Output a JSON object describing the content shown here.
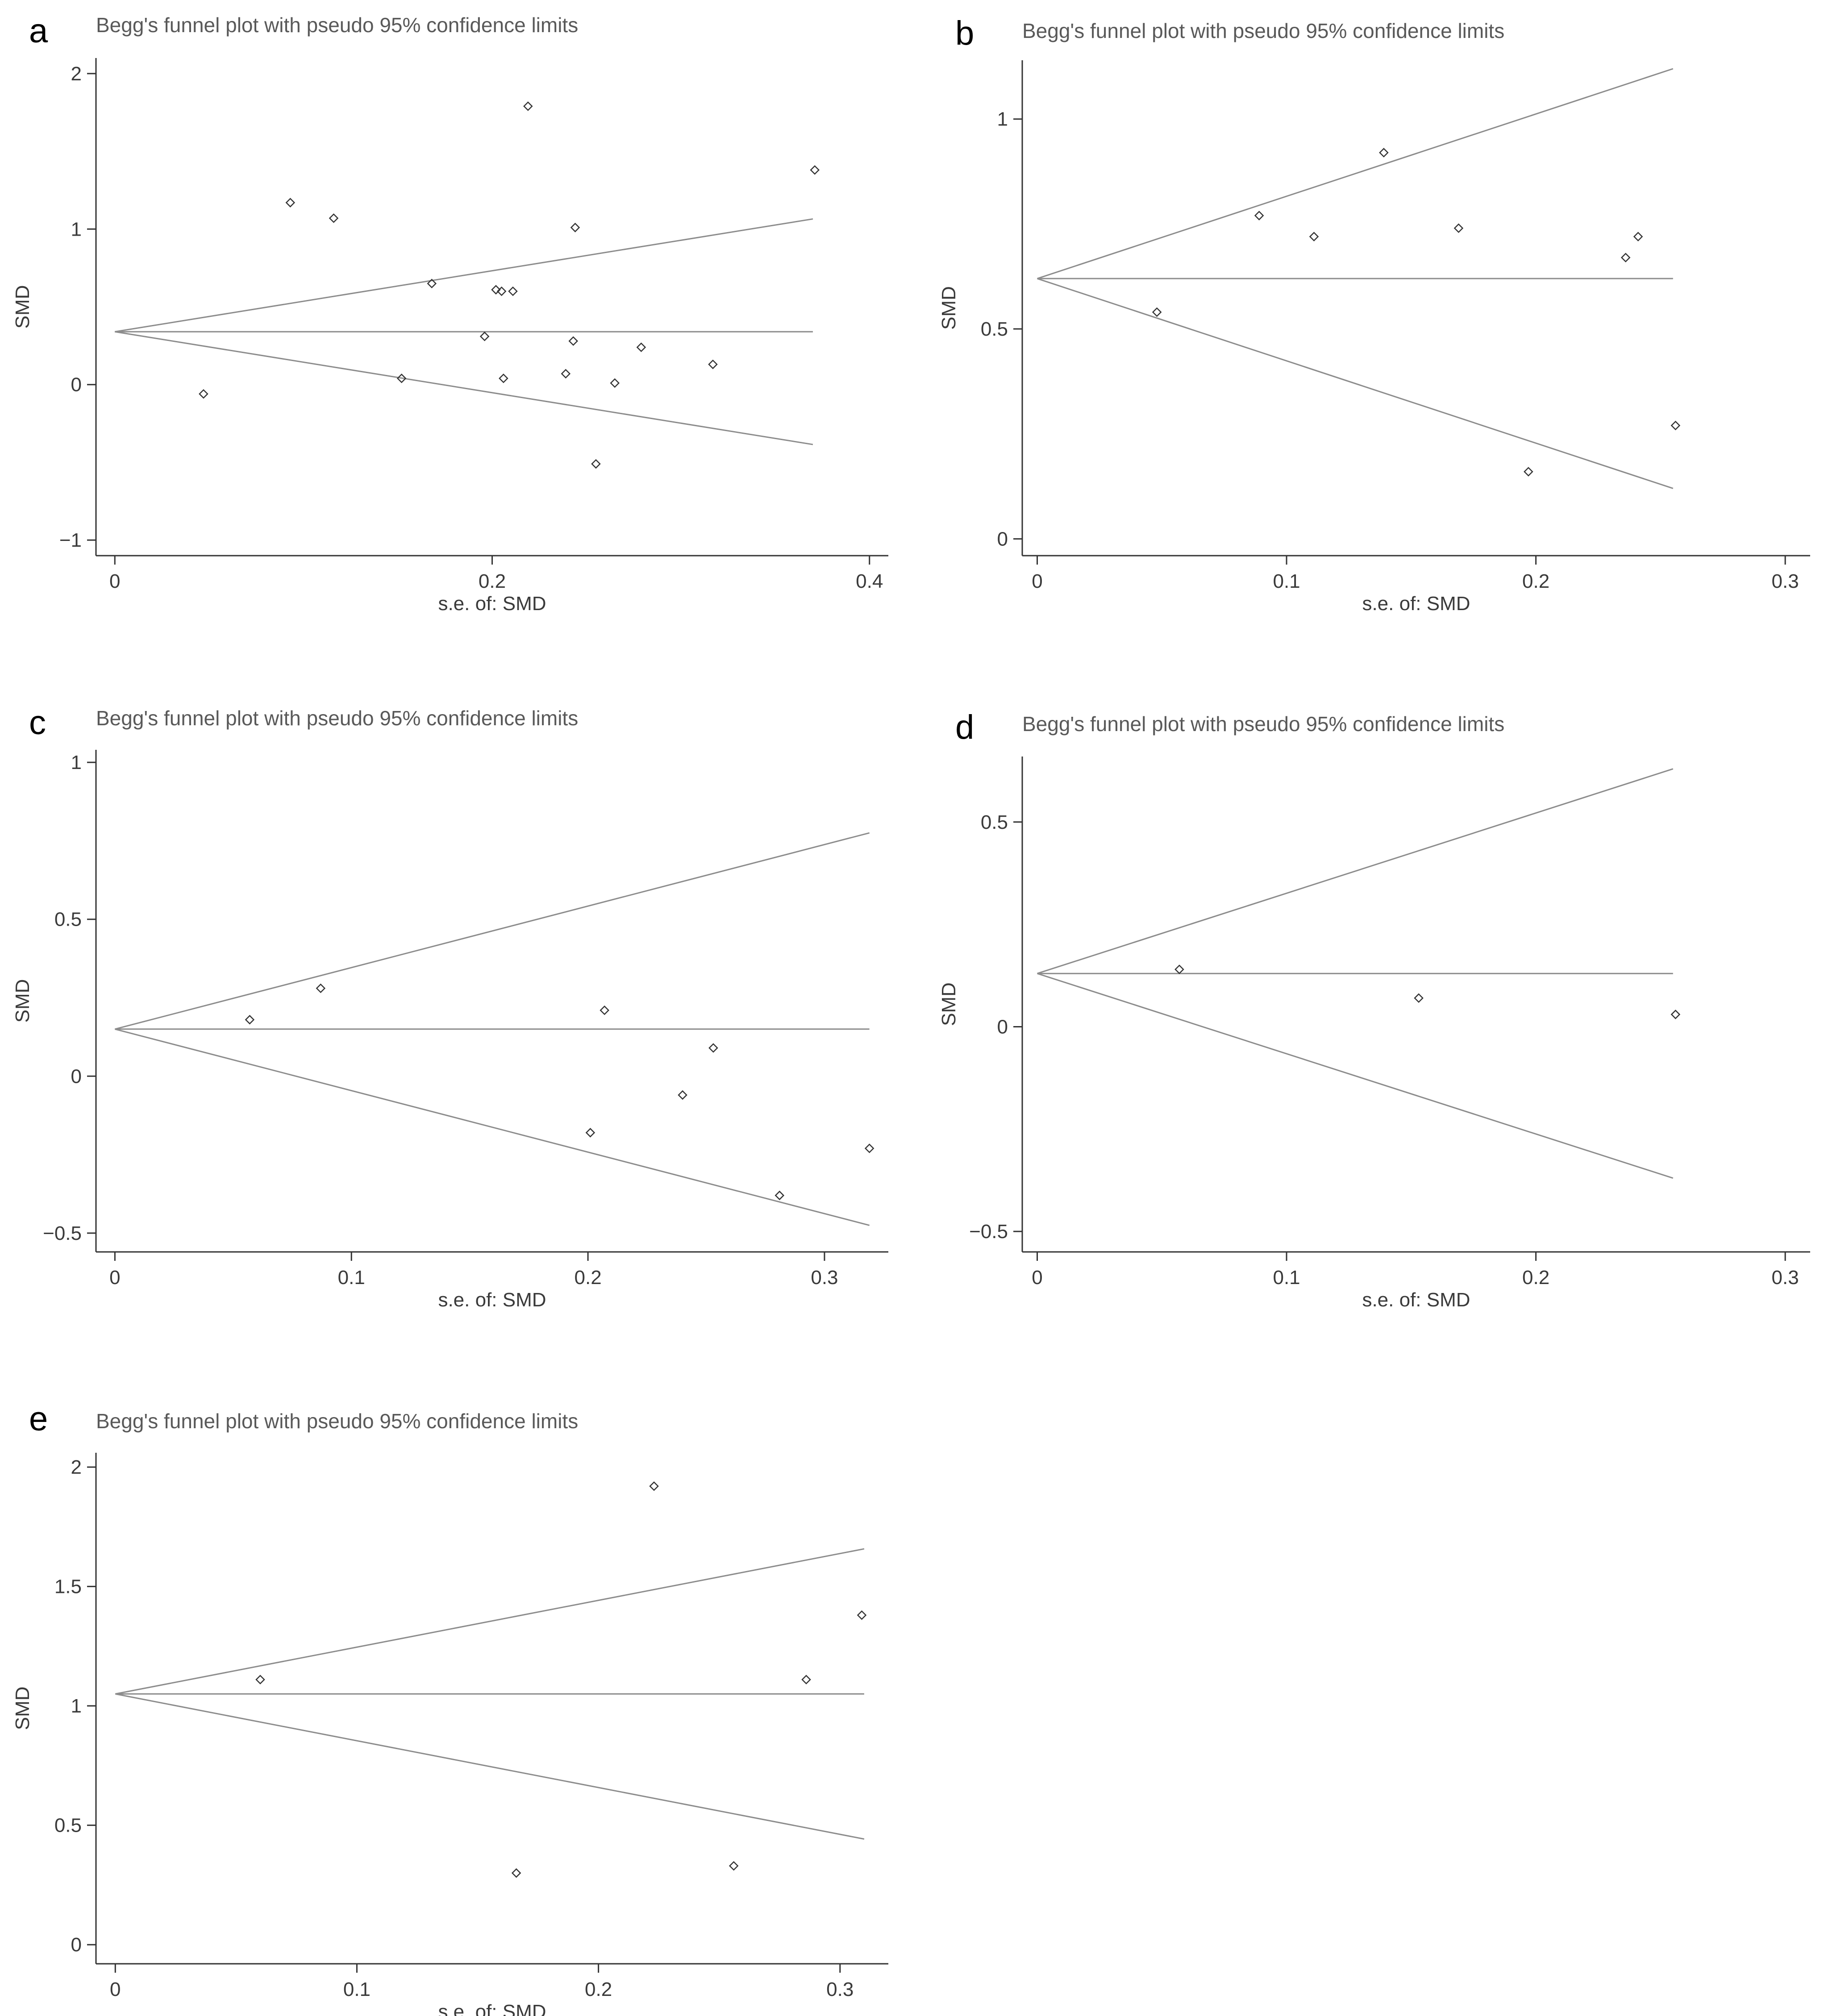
{
  "chart_data": [
    {
      "type": "scatter",
      "panel_label": "a",
      "title": "Begg's funnel plot with pseudo 95% confidence limits",
      "xlabel": "s.e. of: SMD",
      "ylabel": "SMD",
      "xlim": [
        -0.01,
        0.41
      ],
      "ylim": [
        -1.1,
        2.1
      ],
      "xticks": [
        0,
        0.2,
        0.4
      ],
      "xtick_labels": [
        "0",
        "0.2",
        "0.4"
      ],
      "yticks": [
        -1,
        0,
        1,
        2
      ],
      "ytick_labels": [
        "−1",
        "0",
        "1",
        "2"
      ],
      "pooled_estimate": 0.34,
      "se_max": 0.37,
      "points": [
        [
          0.047,
          -0.06
        ],
        [
          0.093,
          1.17
        ],
        [
          0.116,
          1.07
        ],
        [
          0.152,
          0.04
        ],
        [
          0.168,
          0.65
        ],
        [
          0.196,
          0.31
        ],
        [
          0.202,
          0.61
        ],
        [
          0.205,
          0.6
        ],
        [
          0.206,
          0.04
        ],
        [
          0.211,
          0.6
        ],
        [
          0.219,
          1.79
        ],
        [
          0.239,
          0.07
        ],
        [
          0.243,
          0.28
        ],
        [
          0.244,
          1.01
        ],
        [
          0.255,
          -0.51
        ],
        [
          0.265,
          0.01
        ],
        [
          0.279,
          0.24
        ],
        [
          0.317,
          0.13
        ],
        [
          0.371,
          1.38
        ]
      ]
    },
    {
      "type": "scatter",
      "panel_label": "b",
      "title": "Begg's funnel plot with pseudo 95% confidence limits",
      "xlabel": "s.e. of: SMD",
      "ylabel": "SMD",
      "xlim": [
        -0.006,
        0.31
      ],
      "ylim": [
        -0.04,
        1.14
      ],
      "xticks": [
        0,
        0.1,
        0.2,
        0.3
      ],
      "xtick_labels": [
        "0",
        "0.1",
        "0.2",
        "0.3"
      ],
      "yticks": [
        0,
        0.5,
        1
      ],
      "ytick_labels": [
        "0",
        "0.5",
        "1"
      ],
      "pooled_estimate": 0.62,
      "se_max": 0.255,
      "points": [
        [
          0.048,
          0.54
        ],
        [
          0.089,
          0.77
        ],
        [
          0.111,
          0.72
        ],
        [
          0.139,
          0.92
        ],
        [
          0.169,
          0.74
        ],
        [
          0.197,
          0.16
        ],
        [
          0.236,
          0.67
        ],
        [
          0.241,
          0.72
        ],
        [
          0.256,
          0.27
        ]
      ]
    },
    {
      "type": "scatter",
      "panel_label": "c",
      "title": "Begg's funnel plot with pseudo 95% confidence limits",
      "xlabel": "s.e. of: SMD",
      "ylabel": "SMD",
      "xlim": [
        -0.008,
        0.327
      ],
      "ylim": [
        -0.56,
        1.04
      ],
      "xticks": [
        0,
        0.1,
        0.2,
        0.3
      ],
      "xtick_labels": [
        "0",
        "0.1",
        "0.2",
        "0.3"
      ],
      "yticks": [
        -0.5,
        0,
        0.5,
        1
      ],
      "ytick_labels": [
        "−0.5",
        "0",
        "0.5",
        "1"
      ],
      "pooled_estimate": 0.15,
      "se_max": 0.319,
      "points": [
        [
          0.057,
          0.18
        ],
        [
          0.087,
          0.28
        ],
        [
          0.201,
          -0.18
        ],
        [
          0.207,
          0.21
        ],
        [
          0.24,
          -0.06
        ],
        [
          0.253,
          0.09
        ],
        [
          0.281,
          -0.38
        ],
        [
          0.319,
          -0.23
        ]
      ]
    },
    {
      "type": "scatter",
      "panel_label": "d",
      "title": "Begg's funnel plot with pseudo 95% confidence limits",
      "xlabel": "s.e. of: SMD",
      "ylabel": "SMD",
      "xlim": [
        -0.006,
        0.31
      ],
      "ylim": [
        -0.55,
        0.66
      ],
      "xticks": [
        0,
        0.1,
        0.2,
        0.3
      ],
      "xtick_labels": [
        "0",
        "0.1",
        "0.2",
        "0.3"
      ],
      "yticks": [
        -0.5,
        0,
        0.5
      ],
      "ytick_labels": [
        "−0.5",
        "0",
        "0.5"
      ],
      "pooled_estimate": 0.13,
      "se_max": 0.255,
      "points": [
        [
          0.057,
          0.14
        ],
        [
          0.153,
          0.07
        ],
        [
          0.256,
          0.03
        ]
      ]
    },
    {
      "type": "scatter",
      "panel_label": "e",
      "title": "Begg's funnel plot with pseudo 95% confidence limits",
      "xlabel": "s.e. of: SMD",
      "ylabel": "SMD",
      "xlim": [
        -0.008,
        0.32
      ],
      "ylim": [
        -0.08,
        2.06
      ],
      "xticks": [
        0,
        0.1,
        0.2,
        0.3
      ],
      "xtick_labels": [
        "0",
        "0.1",
        "0.2",
        "0.3"
      ],
      "yticks": [
        0,
        0.5,
        1,
        1.5,
        2
      ],
      "ytick_labels": [
        "0",
        "0.5",
        "1",
        "1.5",
        "2"
      ],
      "pooled_estimate": 1.05,
      "se_max": 0.31,
      "points": [
        [
          0.06,
          1.11
        ],
        [
          0.166,
          0.3
        ],
        [
          0.223,
          1.92
        ],
        [
          0.256,
          0.33
        ],
        [
          0.286,
          1.11
        ],
        [
          0.309,
          1.38
        ]
      ]
    }
  ]
}
